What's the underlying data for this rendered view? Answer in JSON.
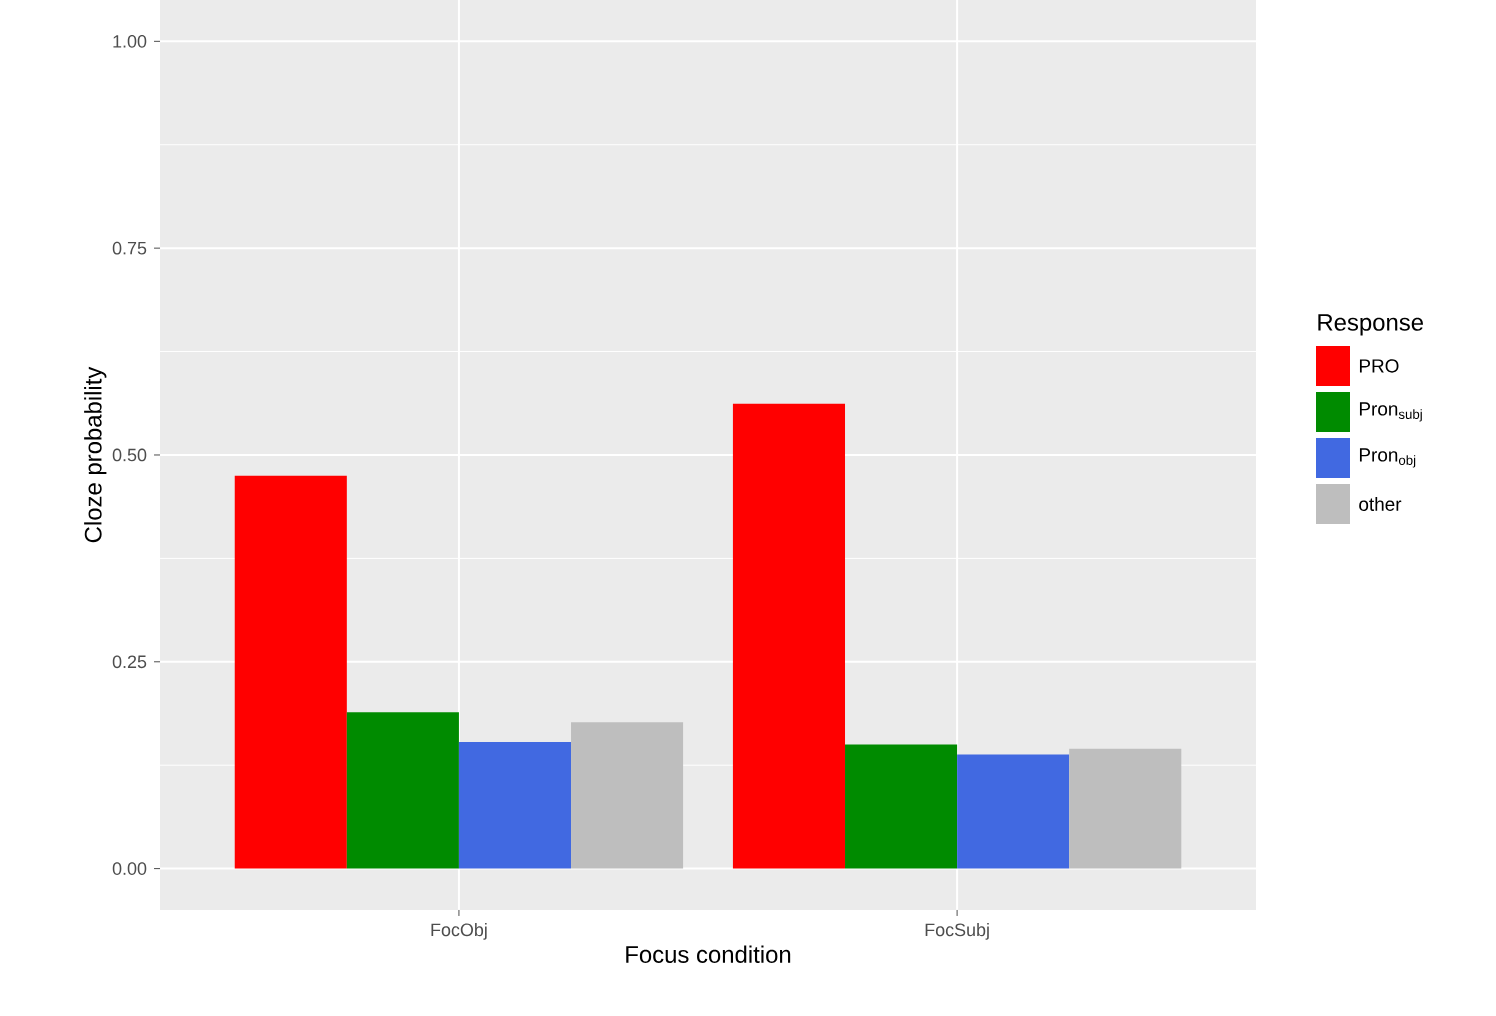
{
  "chart_data": {
    "type": "bar",
    "xlabel": "Focus condition",
    "ylabel": "Cloze probability",
    "legend_title": "Response",
    "categories": [
      "FocObj",
      "FocSubj"
    ],
    "series": [
      {
        "name": "PRO",
        "color": "#ff0000",
        "values": [
          0.475,
          0.562
        ]
      },
      {
        "name": "Pron$_{subj}$",
        "color": "#008b00",
        "values": [
          0.189,
          0.15
        ]
      },
      {
        "name": "Pron$_{obj}$",
        "color": "#4169e1",
        "values": [
          0.153,
          0.138
        ]
      },
      {
        "name": "other",
        "color": "#bebebe",
        "values": [
          0.177,
          0.145
        ]
      }
    ],
    "ylim": [
      -0.05,
      1.05
    ],
    "yticks": [
      {
        "value": 0,
        "label": "0.00"
      },
      {
        "value": 0.25,
        "label": "0.25"
      },
      {
        "value": 0.5,
        "label": "0.50"
      },
      {
        "value": 0.75,
        "label": "0.75"
      },
      {
        "value": 1,
        "label": "1.00"
      }
    ],
    "grid": true,
    "legend": "right"
  }
}
